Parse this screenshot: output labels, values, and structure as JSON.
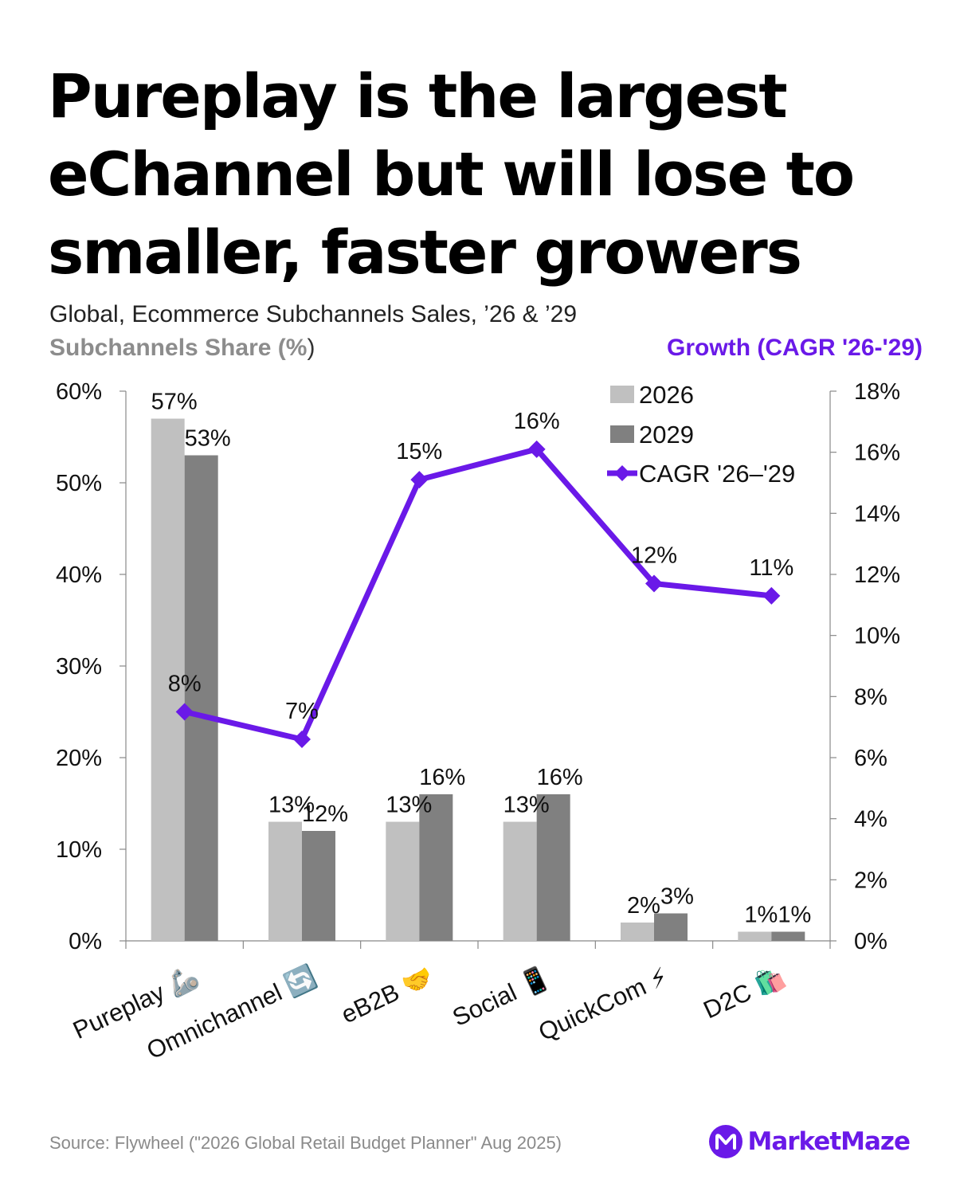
{
  "title": "Pureplay is the largest eChannel but will lose to smaller, faster growers",
  "subtitle": "Global, Ecommerce Subchannels Sales, ’26 & ’29",
  "left_axis_title": "Subchannels Share (%",
  "left_axis_title_paren": ")",
  "right_axis_title": "Growth (CAGR '26-'29)",
  "source": "Source: Flywheel (\"2026 Global Retail Budget Planner\" Aug 2025)",
  "brand": {
    "name": "MarketMaze",
    "logo_letter": "M"
  },
  "colors": {
    "bar_2026": "#c0c0c0",
    "bar_2029": "#808080",
    "line": "#6a19e8",
    "accent": "#6a19e8"
  },
  "chart_data": {
    "type": "bar",
    "categories": [
      "Pureplay 🦾",
      "Omnichannel 🔄",
      "eB2B 🤝",
      "Social 📱",
      "QuickCom ⚡",
      "D2C 🛍️"
    ],
    "series": [
      {
        "name": "2026",
        "axis": "left",
        "type": "bar",
        "values": [
          57,
          13,
          13,
          13,
          2,
          1
        ],
        "labels": [
          "57%",
          "13%",
          "13%",
          "13%",
          "2%",
          "1%"
        ]
      },
      {
        "name": "2029",
        "axis": "left",
        "type": "bar",
        "values": [
          53,
          12,
          16,
          16,
          3,
          1
        ],
        "labels": [
          "53%",
          "12%",
          "16%",
          "16%",
          "3%",
          "1%"
        ]
      },
      {
        "name": "CAGR '26–'29",
        "axis": "right",
        "type": "line",
        "values": [
          7.5,
          6.6,
          15.1,
          16.1,
          11.7,
          11.3
        ],
        "labels": [
          "8%",
          "7%",
          "15%",
          "16%",
          "12%",
          "11%"
        ]
      }
    ],
    "y_left": {
      "range": [
        0,
        60
      ],
      "ticks": [
        "0%",
        "10%",
        "20%",
        "30%",
        "40%",
        "50%",
        "60%"
      ]
    },
    "y_right": {
      "range": [
        0,
        18
      ],
      "ticks": [
        "0%",
        "2%",
        "4%",
        "6%",
        "8%",
        "10%",
        "12%",
        "14%",
        "16%",
        "18%"
      ]
    },
    "grid": false,
    "legend": "top-right"
  }
}
